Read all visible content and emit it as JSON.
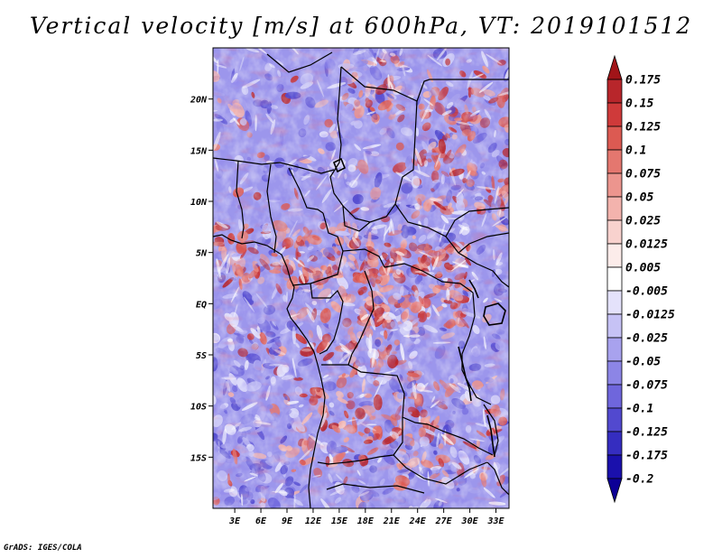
{
  "chart_data": {
    "type": "heatmap",
    "title": "Vertical velocity [m/s] at 600hPa, VT: 2019101512",
    "variable": "Vertical velocity",
    "units": "m/s",
    "level": "600hPa",
    "valid_time": "2019101512",
    "x_ticks": [
      "3E",
      "6E",
      "9E",
      "12E",
      "15E",
      "18E",
      "21E",
      "24E",
      "27E",
      "30E",
      "33E"
    ],
    "x_tick_values": [
      3,
      6,
      9,
      12,
      15,
      18,
      21,
      24,
      27,
      30,
      33
    ],
    "y_ticks": [
      "20N",
      "15N",
      "10N",
      "5N",
      "EQ",
      "5S",
      "10S",
      "15S"
    ],
    "y_tick_values": [
      20,
      15,
      10,
      5,
      0,
      -5,
      -10,
      -15
    ],
    "xlim": [
      0.5,
      34.5
    ],
    "ylim": [
      -20,
      25
    ],
    "colorbar": {
      "levels": [
        "0.175",
        "0.15",
        "0.125",
        "0.1",
        "0.075",
        "0.05",
        "0.025",
        "0.0125",
        "0.005",
        "-0.005",
        "-0.0125",
        "-0.025",
        "-0.05",
        "-0.075",
        "-0.1",
        "-0.125",
        "-0.175",
        "-0.2"
      ],
      "colors": [
        "#a11418",
        "#b8262b",
        "#cf3a3a",
        "#dc5a52",
        "#e4776f",
        "#ec958e",
        "#f3b3ad",
        "#f8d2ce",
        "#fcecea",
        "#ffffff",
        "#e4e2fb",
        "#c6c2f5",
        "#a8a2ee",
        "#8c85e6",
        "#6f66dc",
        "#5249cf",
        "#352dc0",
        "#1a10ac",
        "#0c0096"
      ]
    }
  },
  "credit": "GrADS: IGES/COLA"
}
